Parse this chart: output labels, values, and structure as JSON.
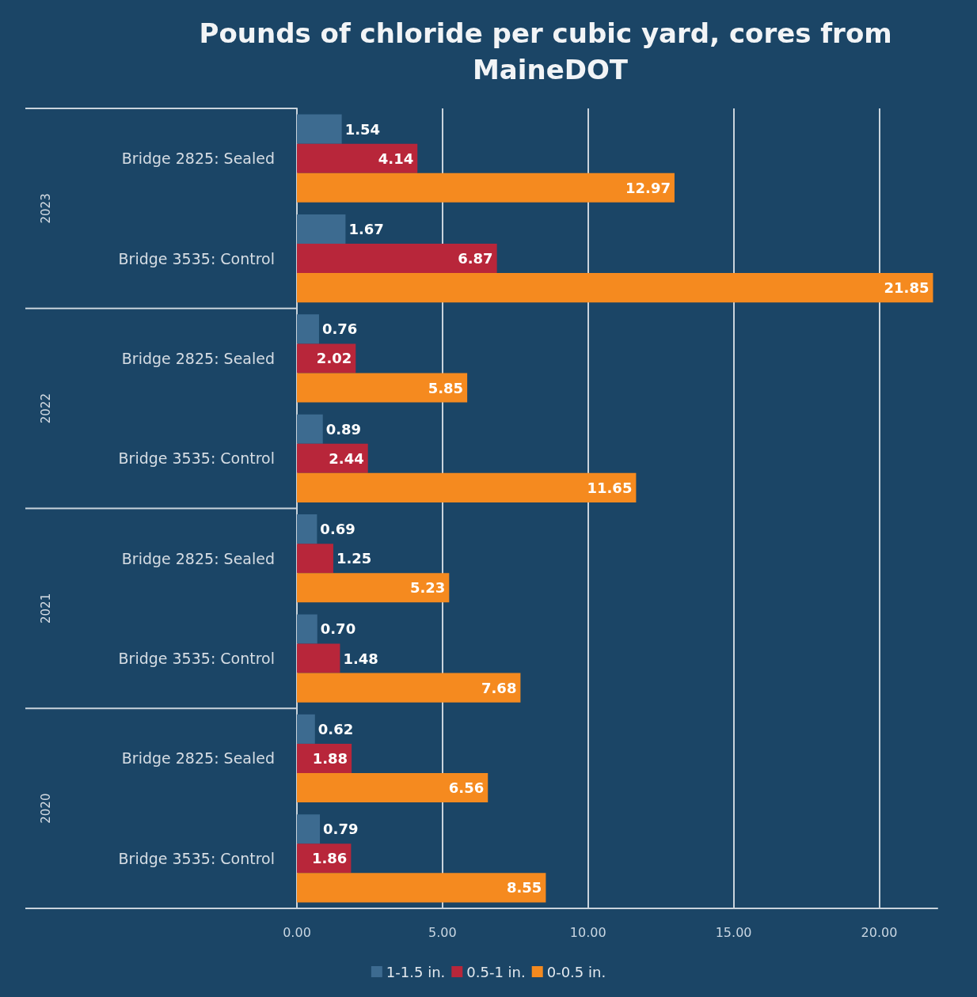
{
  "chart_data": {
    "type": "bar",
    "orientation": "horizontal",
    "title": "Pounds of chloride per cubic yard, cores from MaineDOT",
    "categories": [
      "Bridge 2825: Sealed",
      "Bridge 3535: Control",
      "Bridge 2825: Sealed",
      "Bridge 3535: Control",
      "Bridge 2825: Sealed",
      "Bridge 3535: Control",
      "Bridge 2825: Sealed",
      "Bridge 3535: Control"
    ],
    "annotations": [
      "2023",
      "2022",
      "2021",
      "2020"
    ],
    "series": [
      {
        "name": "1-1.5 in.",
        "color": "#3d6b90",
        "values": [
          1.54,
          1.67,
          0.76,
          0.89,
          0.69,
          0.7,
          0.62,
          0.79
        ],
        "value_labels": [
          "1.54",
          "1.67",
          "0.76",
          "0.89",
          "0.69",
          "0.70",
          "0.62",
          "0.79"
        ]
      },
      {
        "name": "0.5-1 in.",
        "color": "#b8263a",
        "values": [
          4.14,
          6.87,
          2.02,
          2.44,
          1.25,
          1.48,
          1.88,
          1.86
        ],
        "value_labels": [
          "4.14",
          "6.87",
          "2.02",
          "2.44",
          "1.25",
          "1.48",
          "1.88",
          "1.86"
        ]
      },
      {
        "name": "0-0.5 in.",
        "color": "#f58a1f",
        "values": [
          12.97,
          21.85,
          5.85,
          11.65,
          5.23,
          7.68,
          6.56,
          8.55
        ],
        "value_labels": [
          "12.97",
          "21.85",
          "5.85",
          "11.65",
          "5.23",
          "7.68",
          "6.56",
          "8.55"
        ]
      }
    ],
    "xlim": [
      0,
      22
    ],
    "xticks": [
      {
        "value": 0,
        "label": "0.00"
      },
      {
        "value": 5,
        "label": "5.00"
      },
      {
        "value": 10,
        "label": "10.00"
      },
      {
        "value": 15,
        "label": "15.00"
      },
      {
        "value": 20,
        "label": "20.00"
      }
    ],
    "grid": "x",
    "legend": "bottom"
  }
}
